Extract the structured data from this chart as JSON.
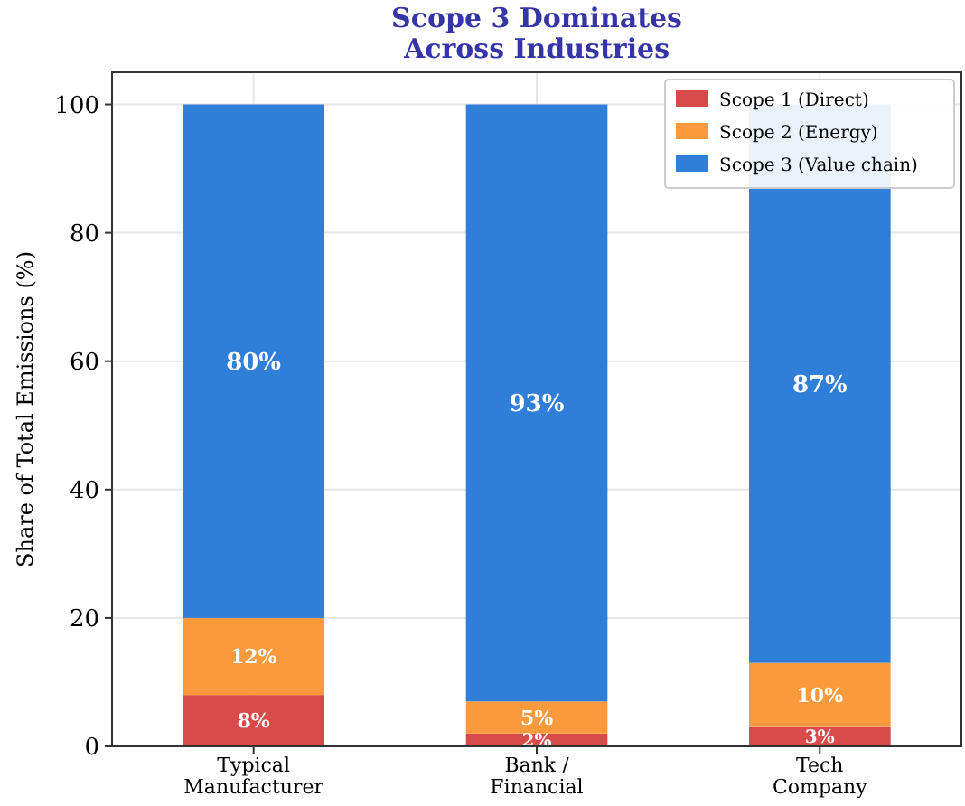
{
  "chart_data": {
    "type": "bar",
    "title": "Scope 3 Dominates\nAcross Industries",
    "ylabel": "Share of Total Emissions (%)",
    "categories": [
      "Typical\nManufacturer",
      "Bank /\nFinancial",
      "Tech\nCompany"
    ],
    "stacked": true,
    "ylim": [
      0,
      105
    ],
    "yticks": [
      0,
      20,
      40,
      60,
      80,
      100
    ],
    "grid": true,
    "legend": "top right",
    "series": [
      {
        "name": "Scope 1 (Direct)",
        "color": "#d94a4a",
        "values": [
          8,
          2,
          3
        ],
        "value_labels": [
          "8%",
          "2%",
          "3%"
        ]
      },
      {
        "name": "Scope 2 (Energy)",
        "color": "#fb9a3c",
        "values": [
          12,
          5,
          10
        ],
        "value_labels": [
          "12%",
          "5%",
          "10%"
        ]
      },
      {
        "name": "Scope 3 (Value chain)",
        "color": "#2f7ed8",
        "values": [
          80,
          93,
          87
        ],
        "value_labels": [
          "80%",
          "93%",
          "87%"
        ]
      }
    ]
  }
}
